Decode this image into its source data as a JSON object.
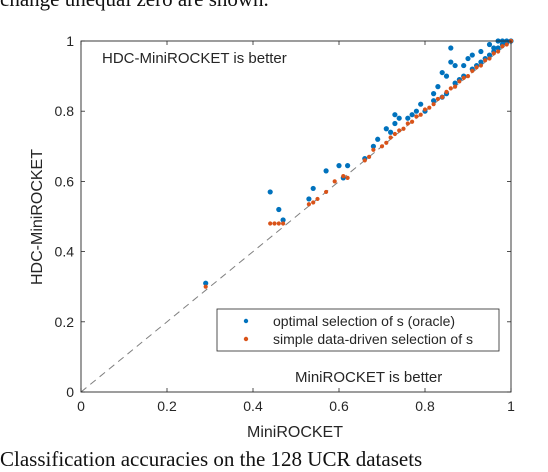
{
  "figure": {
    "top_caption": "change unequal zero are shown.",
    "bottom_caption": "Classification accuracies on the 128 UCR datasets"
  },
  "chart_data": {
    "type": "scatter",
    "title": "",
    "xlabel": "MiniROCKET",
    "ylabel": "HDC-MiniROCKET",
    "xlim": [
      0,
      1
    ],
    "ylim": [
      0,
      1
    ],
    "xticks": [
      "0",
      "0.2",
      "0.4",
      "0.6",
      "0.8",
      "1"
    ],
    "yticks": [
      "0",
      "0.2",
      "0.4",
      "0.6",
      "0.8",
      "1"
    ],
    "xtick_values": [
      0,
      0.2,
      0.4,
      0.6,
      0.8,
      1
    ],
    "ytick_values": [
      0,
      0.2,
      0.4,
      0.6,
      0.8,
      1
    ],
    "grid": false,
    "diagonal_reference": true,
    "legend_position": "bottom-right",
    "annotations": [
      {
        "text": "HDC-MiniROCKET is better",
        "position": "top-left"
      },
      {
        "text": "MiniROCKET is better",
        "position": "bottom-right"
      }
    ],
    "colors": {
      "oracle": "#0072BD",
      "data_driven": "#D95319",
      "diagonal": "#808080",
      "axes": "#262626"
    },
    "series": [
      {
        "name": "optimal selection of s (oracle)",
        "color": "#0072BD",
        "points": [
          [
            0.29,
            0.31
          ],
          [
            0.44,
            0.57
          ],
          [
            0.46,
            0.52
          ],
          [
            0.47,
            0.49
          ],
          [
            0.53,
            0.55
          ],
          [
            0.54,
            0.58
          ],
          [
            0.57,
            0.63
          ],
          [
            0.6,
            0.645
          ],
          [
            0.62,
            0.645
          ],
          [
            0.61,
            0.61
          ],
          [
            0.66,
            0.665
          ],
          [
            0.68,
            0.7
          ],
          [
            0.69,
            0.72
          ],
          [
            0.71,
            0.75
          ],
          [
            0.72,
            0.74
          ],
          [
            0.73,
            0.765
          ],
          [
            0.73,
            0.79
          ],
          [
            0.74,
            0.78
          ],
          [
            0.76,
            0.78
          ],
          [
            0.77,
            0.79
          ],
          [
            0.78,
            0.8
          ],
          [
            0.79,
            0.82
          ],
          [
            0.8,
            0.8
          ],
          [
            0.82,
            0.83
          ],
          [
            0.82,
            0.85
          ],
          [
            0.83,
            0.87
          ],
          [
            0.84,
            0.84
          ],
          [
            0.85,
            0.85
          ],
          [
            0.84,
            0.91
          ],
          [
            0.85,
            0.9
          ],
          [
            0.86,
            0.94
          ],
          [
            0.87,
            0.88
          ],
          [
            0.86,
            0.98
          ],
          [
            0.87,
            0.93
          ],
          [
            0.88,
            0.89
          ],
          [
            0.89,
            0.9
          ],
          [
            0.89,
            0.93
          ],
          [
            0.9,
            0.95
          ],
          [
            0.91,
            0.92
          ],
          [
            0.91,
            0.96
          ],
          [
            0.92,
            0.93
          ],
          [
            0.93,
            0.94
          ],
          [
            0.93,
            0.97
          ],
          [
            0.94,
            0.95
          ],
          [
            0.95,
            0.99
          ],
          [
            0.95,
            0.96
          ],
          [
            0.96,
            0.97
          ],
          [
            0.96,
            0.98
          ],
          [
            0.97,
            1.0
          ],
          [
            0.97,
            0.98
          ],
          [
            0.98,
            0.99
          ],
          [
            0.98,
            1.0
          ],
          [
            0.99,
            0.995
          ],
          [
            0.99,
            1.0
          ],
          [
            1.0,
            1.0
          ]
        ]
      },
      {
        "name": "simple data-driven selection of s",
        "color": "#D95319",
        "points": [
          [
            0.29,
            0.3
          ],
          [
            0.44,
            0.48
          ],
          [
            0.45,
            0.48
          ],
          [
            0.46,
            0.48
          ],
          [
            0.47,
            0.48
          ],
          [
            0.53,
            0.535
          ],
          [
            0.54,
            0.54
          ],
          [
            0.55,
            0.55
          ],
          [
            0.57,
            0.57
          ],
          [
            0.59,
            0.6
          ],
          [
            0.61,
            0.615
          ],
          [
            0.62,
            0.61
          ],
          [
            0.66,
            0.66
          ],
          [
            0.67,
            0.67
          ],
          [
            0.68,
            0.69
          ],
          [
            0.7,
            0.7
          ],
          [
            0.71,
            0.71
          ],
          [
            0.72,
            0.725
          ],
          [
            0.73,
            0.735
          ],
          [
            0.74,
            0.745
          ],
          [
            0.75,
            0.75
          ],
          [
            0.76,
            0.765
          ],
          [
            0.77,
            0.77
          ],
          [
            0.78,
            0.785
          ],
          [
            0.79,
            0.79
          ],
          [
            0.8,
            0.805
          ],
          [
            0.81,
            0.81
          ],
          [
            0.82,
            0.82
          ],
          [
            0.83,
            0.835
          ],
          [
            0.84,
            0.84
          ],
          [
            0.85,
            0.855
          ],
          [
            0.86,
            0.865
          ],
          [
            0.87,
            0.87
          ],
          [
            0.88,
            0.885
          ],
          [
            0.89,
            0.895
          ],
          [
            0.9,
            0.9
          ],
          [
            0.91,
            0.915
          ],
          [
            0.92,
            0.925
          ],
          [
            0.93,
            0.93
          ],
          [
            0.94,
            0.945
          ],
          [
            0.95,
            0.95
          ],
          [
            0.96,
            0.965
          ],
          [
            0.97,
            0.97
          ],
          [
            0.98,
            0.985
          ],
          [
            0.99,
            0.99
          ],
          [
            1.0,
            1.0
          ]
        ]
      }
    ]
  }
}
